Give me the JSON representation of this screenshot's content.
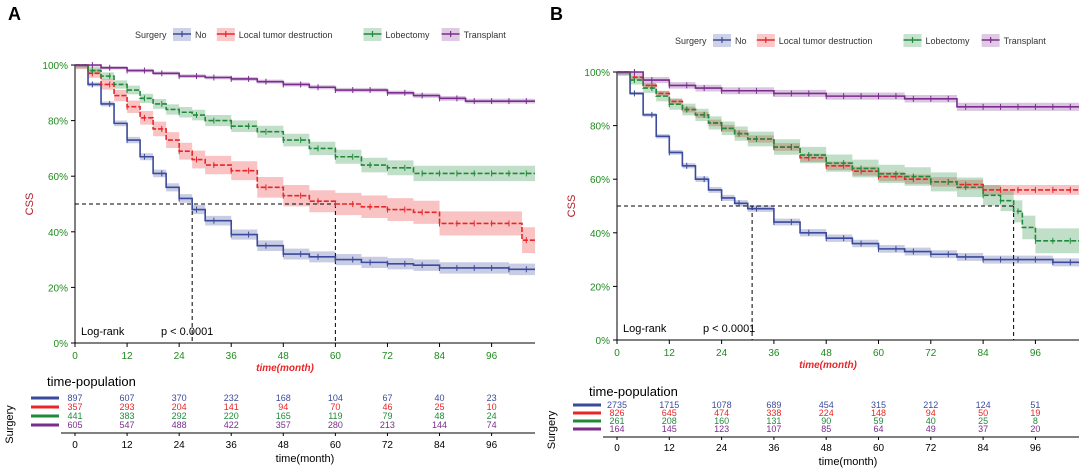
{
  "colors": {
    "No": "#3b4a9c",
    "Local tumor destruction": "#e8262a",
    "Lobectomy": "#1f8b3a",
    "Transplant": "#7b2d8e",
    "axis_green": "#1e8b1e",
    "axis_red": "#b5202a",
    "time_label": "#e8262a"
  },
  "chart_data": [
    {
      "type": "line",
      "subtype": "kaplan-meier",
      "panel_label": "A",
      "legend_title": "Surgery",
      "legend_items": [
        "No",
        "Local tumor destruction",
        "Lobectomy",
        "Transplant"
      ],
      "ylabel": "CSS",
      "xlabel": "time(month)",
      "x_ticks": [
        0,
        12,
        24,
        36,
        48,
        60,
        72,
        84,
        96
      ],
      "y_ticks": [
        "0%",
        "20%",
        "40%",
        "60%",
        "80%",
        "100%"
      ],
      "xlim": [
        0,
        106
      ],
      "ylim": [
        0,
        1
      ],
      "median_lines": [
        27,
        60
      ],
      "pvalue_label": "Log-rank",
      "pvalue": "p < 0.0001",
      "series": [
        {
          "name": "No",
          "x": [
            0,
            3,
            6,
            9,
            12,
            15,
            18,
            21,
            24,
            27,
            30,
            36,
            42,
            48,
            54,
            60,
            66,
            72,
            78,
            84,
            90,
            96,
            100,
            106
          ],
          "y": [
            1,
            0.93,
            0.86,
            0.79,
            0.73,
            0.67,
            0.61,
            0.56,
            0.52,
            0.48,
            0.44,
            0.39,
            0.35,
            0.32,
            0.31,
            0.3,
            0.29,
            0.285,
            0.28,
            0.27,
            0.27,
            0.27,
            0.265,
            0.265
          ],
          "ci": 0.02
        },
        {
          "name": "Local tumor destruction",
          "x": [
            0,
            3,
            6,
            9,
            12,
            15,
            18,
            21,
            24,
            27,
            30,
            36,
            42,
            48,
            54,
            60,
            66,
            72,
            78,
            84,
            90,
            96,
            100,
            103,
            106
          ],
          "y": [
            1,
            0.97,
            0.93,
            0.89,
            0.85,
            0.81,
            0.77,
            0.73,
            0.69,
            0.66,
            0.64,
            0.62,
            0.56,
            0.53,
            0.51,
            0.5,
            0.49,
            0.48,
            0.47,
            0.43,
            0.43,
            0.43,
            0.43,
            0.37,
            0.37
          ],
          "ci": 0.05
        },
        {
          "name": "Lobectomy",
          "x": [
            0,
            3,
            6,
            9,
            12,
            15,
            18,
            21,
            24,
            27,
            30,
            36,
            42,
            48,
            54,
            60,
            66,
            72,
            78,
            84,
            90,
            96,
            100,
            106
          ],
          "y": [
            1,
            0.98,
            0.96,
            0.93,
            0.91,
            0.88,
            0.86,
            0.84,
            0.83,
            0.82,
            0.8,
            0.78,
            0.76,
            0.73,
            0.7,
            0.67,
            0.64,
            0.63,
            0.61,
            0.61,
            0.61,
            0.61,
            0.61,
            0.61
          ],
          "ci": 0.04
        },
        {
          "name": "Transplant",
          "x": [
            0,
            6,
            12,
            18,
            24,
            30,
            36,
            42,
            48,
            54,
            60,
            66,
            72,
            78,
            84,
            90,
            96,
            100,
            106
          ],
          "y": [
            1,
            0.99,
            0.98,
            0.97,
            0.96,
            0.955,
            0.95,
            0.94,
            0.93,
            0.92,
            0.91,
            0.91,
            0.9,
            0.89,
            0.88,
            0.87,
            0.87,
            0.87,
            0.87
          ],
          "ci": 0.02
        }
      ],
      "risk_table": {
        "title": "time-population",
        "row_label": "Surgery",
        "xlabel": "time(month)",
        "rows": [
          {
            "name": "No",
            "values": [
              "897",
              "607",
              "370",
              "232",
              "168",
              "104",
              "67",
              "40",
              "23"
            ]
          },
          {
            "name": "Local tumor destruction",
            "values": [
              "357",
              "293",
              "204",
              "141",
              "94",
              "70",
              "46",
              "25",
              "10"
            ]
          },
          {
            "name": "Lobectomy",
            "values": [
              "441",
              "383",
              "292",
              "220",
              "165",
              "119",
              "79",
              "48",
              "24"
            ]
          },
          {
            "name": "Transplant",
            "values": [
              "605",
              "547",
              "488",
              "422",
              "357",
              "280",
              "213",
              "144",
              "74"
            ]
          }
        ]
      }
    },
    {
      "type": "line",
      "subtype": "kaplan-meier",
      "panel_label": "B",
      "legend_title": "Surgery",
      "legend_items": [
        "No",
        "Local tumor destruction",
        "Lobectomy",
        "Transplant"
      ],
      "ylabel": "CSS",
      "xlabel": "time(month)",
      "x_ticks": [
        0,
        12,
        24,
        36,
        48,
        60,
        72,
        84,
        96
      ],
      "y_ticks": [
        "0%",
        "20%",
        "40%",
        "60%",
        "80%",
        "100%"
      ],
      "xlim": [
        0,
        106
      ],
      "ylim": [
        0,
        1
      ],
      "median_lines": [
        31,
        91
      ],
      "pvalue_label": "Log-rank",
      "pvalue": "p < 0.0001",
      "series": [
        {
          "name": "No",
          "x": [
            0,
            3,
            6,
            9,
            12,
            15,
            18,
            21,
            24,
            27,
            30,
            36,
            42,
            48,
            54,
            60,
            66,
            72,
            78,
            84,
            90,
            96,
            100,
            106
          ],
          "y": [
            1,
            0.92,
            0.84,
            0.76,
            0.7,
            0.65,
            0.6,
            0.56,
            0.53,
            0.51,
            0.49,
            0.44,
            0.4,
            0.38,
            0.36,
            0.34,
            0.33,
            0.32,
            0.31,
            0.3,
            0.3,
            0.3,
            0.29,
            0.29
          ],
          "ci": 0.015
        },
        {
          "name": "Local tumor destruction",
          "x": [
            0,
            3,
            6,
            9,
            12,
            15,
            18,
            21,
            24,
            27,
            30,
            36,
            42,
            48,
            54,
            60,
            66,
            72,
            78,
            84,
            90,
            96,
            100,
            106
          ],
          "y": [
            1,
            0.98,
            0.95,
            0.92,
            0.89,
            0.86,
            0.84,
            0.81,
            0.79,
            0.77,
            0.75,
            0.72,
            0.68,
            0.65,
            0.63,
            0.61,
            0.6,
            0.59,
            0.58,
            0.56,
            0.56,
            0.56,
            0.56,
            0.56
          ],
          "ci": 0.025
        },
        {
          "name": "Lobectomy",
          "x": [
            0,
            3,
            6,
            9,
            12,
            15,
            18,
            21,
            24,
            27,
            30,
            36,
            42,
            48,
            54,
            60,
            66,
            72,
            78,
            84,
            88,
            91,
            93,
            96,
            100,
            106
          ],
          "y": [
            1,
            0.97,
            0.94,
            0.91,
            0.88,
            0.86,
            0.84,
            0.81,
            0.79,
            0.77,
            0.75,
            0.72,
            0.69,
            0.66,
            0.64,
            0.62,
            0.61,
            0.59,
            0.57,
            0.54,
            0.52,
            0.48,
            0.42,
            0.37,
            0.37,
            0.37
          ],
          "ci": 0.05
        },
        {
          "name": "Transplant",
          "x": [
            0,
            6,
            12,
            18,
            24,
            30,
            36,
            42,
            48,
            54,
            60,
            66,
            72,
            78,
            84,
            90,
            96,
            100,
            106
          ],
          "y": [
            1,
            0.97,
            0.95,
            0.94,
            0.93,
            0.93,
            0.92,
            0.92,
            0.91,
            0.91,
            0.91,
            0.9,
            0.9,
            0.87,
            0.87,
            0.87,
            0.87,
            0.87,
            0.87
          ],
          "ci": 0.035
        }
      ],
      "risk_table": {
        "title": "time-population",
        "row_label": "Surgery",
        "xlabel": "time(month)",
        "rows": [
          {
            "name": "No",
            "values": [
              "2735",
              "1715",
              "1078",
              "689",
              "454",
              "315",
              "212",
              "124",
              "51"
            ]
          },
          {
            "name": "Local tumor destruction",
            "values": [
              "826",
              "645",
              "474",
              "338",
              "224",
              "148",
              "94",
              "50",
              "19"
            ]
          },
          {
            "name": "Lobectomy",
            "values": [
              "261",
              "208",
              "160",
              "131",
              "90",
              "59",
              "40",
              "25",
              "8"
            ]
          },
          {
            "name": "Transplant",
            "values": [
              "164",
              "145",
              "123",
              "107",
              "85",
              "64",
              "49",
              "37",
              "20"
            ]
          }
        ]
      }
    }
  ]
}
